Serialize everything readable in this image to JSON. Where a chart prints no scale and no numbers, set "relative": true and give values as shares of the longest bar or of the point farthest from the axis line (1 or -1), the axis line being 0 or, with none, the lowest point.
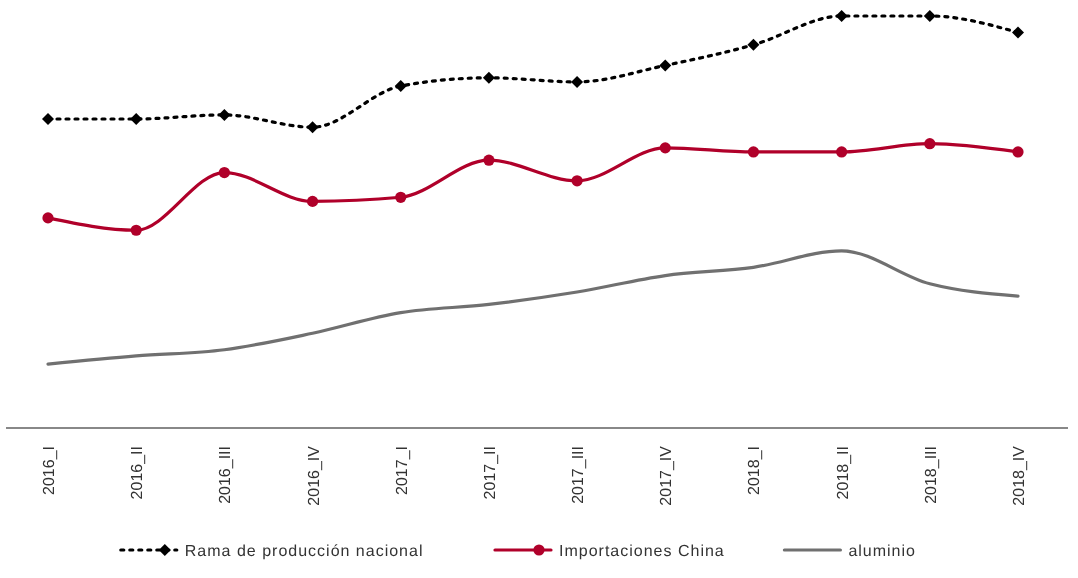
{
  "chart_data": {
    "type": "line",
    "relative": true,
    "legend": "bottom",
    "grid": false,
    "categories": [
      "2016_I",
      "2016_II",
      "2016_III",
      "2016_IV",
      "2017_I",
      "2017_II",
      "2017_III",
      "2017_IV",
      "2018_I",
      "2018_II",
      "2018_III",
      "2018_IV"
    ],
    "series": [
      {
        "name": "Rama de producción nacional",
        "color": "#000000",
        "line_style": "dotted",
        "marker": "diamond",
        "values": [
          0.75,
          0.75,
          0.76,
          0.73,
          0.83,
          0.85,
          0.84,
          0.88,
          0.93,
          1,
          1,
          0.96
        ]
      },
      {
        "name": "Importaciones China",
        "color": "#b0002a",
        "line_style": "solid",
        "marker": "circle",
        "values": [
          0.51,
          0.48,
          0.62,
          0.55,
          0.56,
          0.65,
          0.6,
          0.68,
          0.67,
          0.67,
          0.69,
          0.67
        ]
      },
      {
        "name": "aluminio",
        "color": "#707070",
        "line_style": "solid",
        "marker": "none",
        "values": [
          0.155,
          0.175,
          0.19,
          0.23,
          0.28,
          0.3,
          0.33,
          0.37,
          0.39,
          0.43,
          0.35,
          0.32
        ]
      }
    ]
  }
}
